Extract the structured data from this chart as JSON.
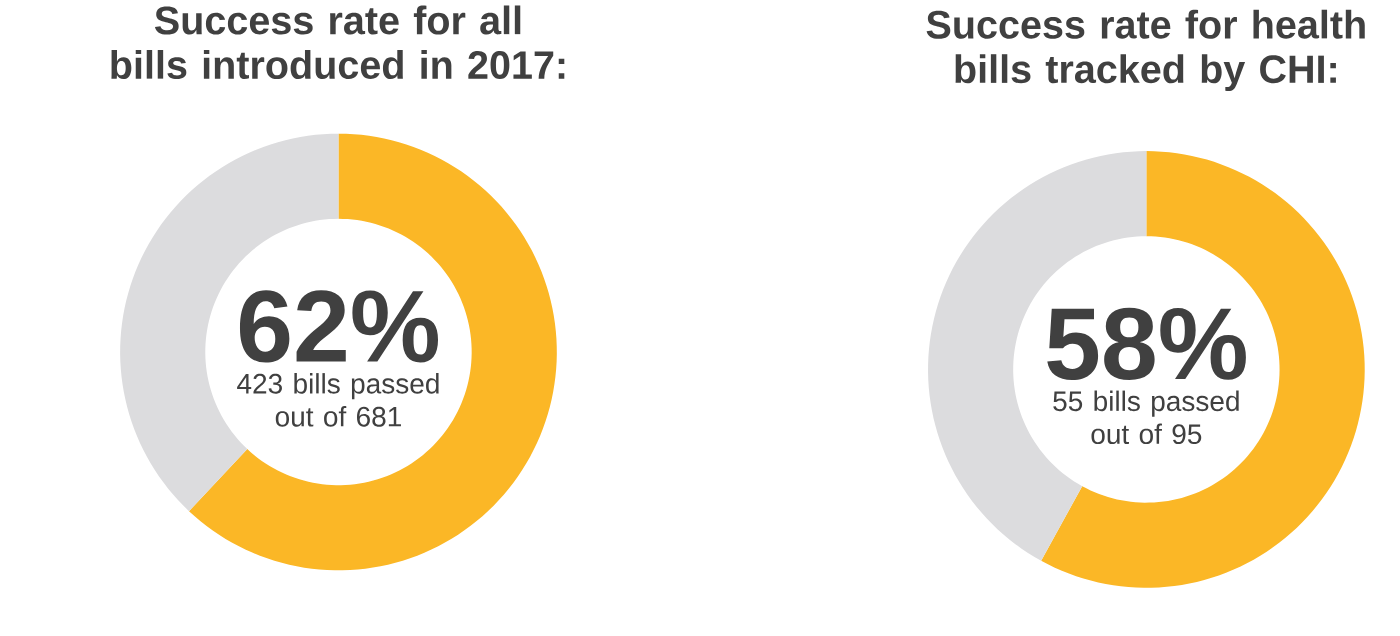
{
  "chart_data": [
    {
      "type": "donut",
      "title": "Success rate for all bills introduced in 2017:",
      "categories": [
        null,
        null
      ],
      "values": [
        62,
        38
      ],
      "colors": [
        "#fbb726",
        "#dcdcde"
      ],
      "annotations": [
        "62%",
        "423 bills passed out of 681"
      ]
    },
    {
      "type": "donut",
      "title": "Success rate for health bills tracked by CHI:",
      "categories": [
        null,
        null
      ],
      "values": [
        58,
        42
      ],
      "colors": [
        "#fbb726",
        "#dcdcde"
      ],
      "annotations": [
        "58%",
        "55 bills passed out of 95"
      ]
    }
  ]
}
